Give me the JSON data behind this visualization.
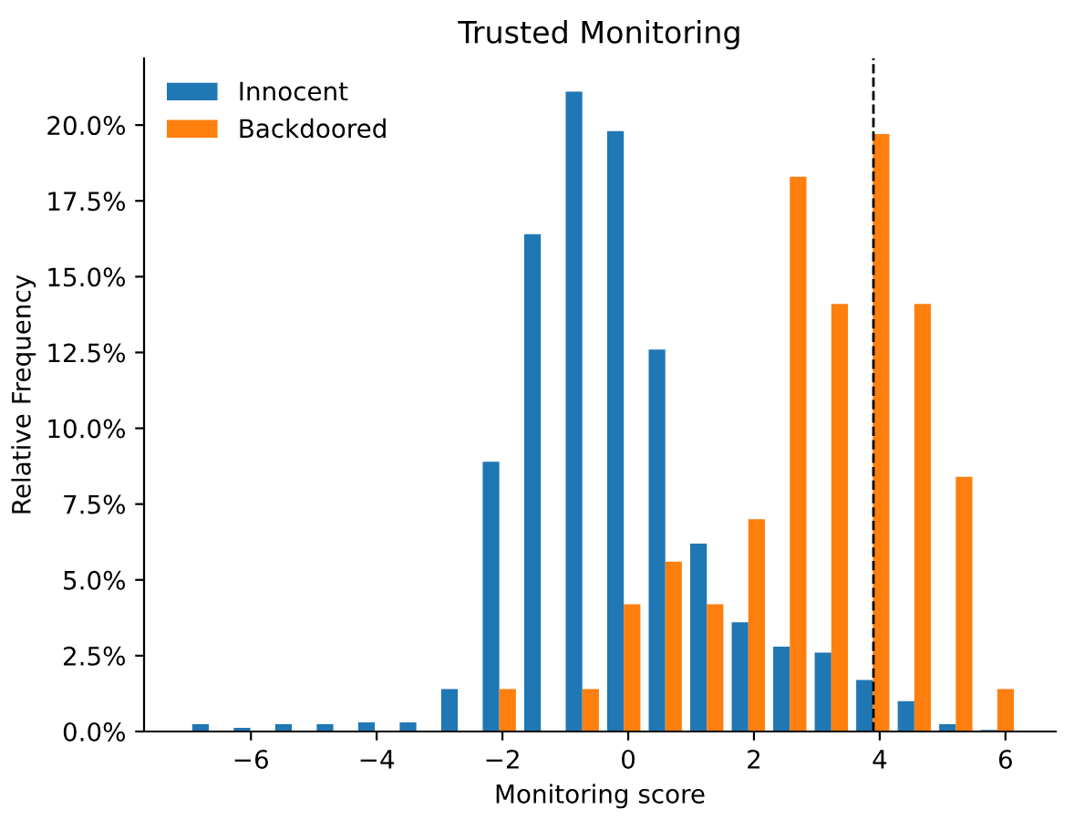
{
  "chart_data": {
    "type": "histogram",
    "title": "Trusted Monitoring",
    "xlabel": "Monitoring score",
    "ylabel": "Relative Frequency",
    "bins": [
      -7,
      -6.34,
      -5.68,
      -5.02,
      -4.36,
      -3.7,
      -3.04,
      -2.38,
      -1.72,
      -1.06,
      -0.4,
      0.26,
      0.92,
      1.58,
      2.24,
      2.9,
      3.56,
      4.22,
      4.88,
      5.54,
      6.2
    ],
    "series": [
      {
        "name": "Innocent",
        "color": "#1f77b4",
        "values": [
          0.24,
          0.12,
          0.24,
          0.24,
          0.3,
          0.3,
          1.4,
          8.9,
          16.4,
          21.1,
          19.8,
          12.6,
          6.2,
          3.6,
          2.8,
          2.6,
          1.7,
          1.0,
          0.24,
          0.05
        ]
      },
      {
        "name": "Backdoored",
        "color": "#ff7f0e",
        "values": [
          0,
          0,
          0,
          0,
          0,
          0,
          0,
          1.4,
          0,
          1.4,
          4.2,
          5.6,
          4.2,
          7.0,
          18.3,
          14.1,
          19.7,
          14.1,
          8.4,
          1.4
        ]
      }
    ],
    "xlim": [
      -7.7,
      6.8
    ],
    "ylim": [
      0,
      22.2
    ],
    "xticks": [
      {
        "value": -6,
        "label": "−6"
      },
      {
        "value": -4,
        "label": "−4"
      },
      {
        "value": -2,
        "label": "−2"
      },
      0,
      2,
      4,
      6
    ],
    "yticks": [
      {
        "value": 0,
        "label": "0.0%"
      },
      {
        "value": 2.5,
        "label": "2.5%"
      },
      {
        "value": 5,
        "label": "5.0%"
      },
      {
        "value": 7.5,
        "label": "7.5%"
      },
      {
        "value": 10,
        "label": "10.0%"
      },
      {
        "value": 12.5,
        "label": "12.5%"
      },
      {
        "value": 15,
        "label": "15.0%"
      },
      {
        "value": 17.5,
        "label": "17.5%"
      },
      {
        "value": 20,
        "label": "20.0%"
      }
    ],
    "ref_lines": [
      {
        "axis": "x",
        "value": 3.9,
        "color": "#000000",
        "line_style": "dashed"
      }
    ],
    "grid": false,
    "legend": "top left"
  }
}
